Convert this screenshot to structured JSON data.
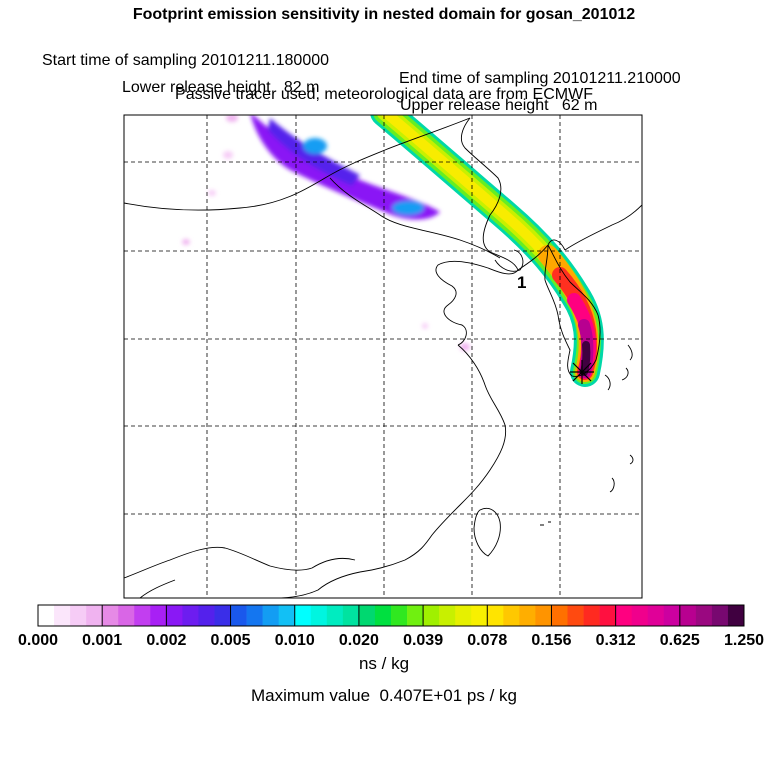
{
  "titles": {
    "line1": "Footprint emission sensitivity in nested domain for gosan_201012",
    "start": "Start time of sampling 20101211.180000",
    "end": "End time of sampling 20101211.210000",
    "lower": "Lower release height   82 m",
    "upper": "Upper release height   62 m",
    "line4": "Passive tracer used, meteorological data are from ECMWF"
  },
  "map": {
    "receptor_label": "1"
  },
  "colorbar": {
    "tick_labels": [
      "0.000",
      "0.001",
      "0.002",
      "0.005",
      "0.010",
      "0.020",
      "0.039",
      "0.078",
      "0.156",
      "0.312",
      "0.625",
      "1.250"
    ],
    "colors": [
      [
        "#ffffff",
        "#fbe6fb",
        "#f6ccf6",
        "#f0b3f0"
      ],
      [
        "#e68ae6",
        "#d966e6",
        "#c23ef0",
        "#a820f5"
      ],
      [
        "#8a18f5",
        "#6d1df0",
        "#5421ec",
        "#3a2ee8"
      ],
      [
        "#1a58ec",
        "#1476f0",
        "#139df3",
        "#12c0f5"
      ],
      [
        "#00ffff",
        "#00f5e0",
        "#00ecc0",
        "#00e3a0"
      ],
      [
        "#00d870",
        "#00e040",
        "#30e820",
        "#70f010"
      ],
      [
        "#a0f000",
        "#c8f000",
        "#e6f000",
        "#f8f000"
      ],
      [
        "#ffe400",
        "#ffc800",
        "#ffae00",
        "#ff9400"
      ],
      [
        "#ff7000",
        "#ff4a10",
        "#ff2a20",
        "#ff1040"
      ],
      [
        "#ff0080",
        "#f0008c",
        "#e00098",
        "#cc00a0"
      ],
      [
        "#b80090",
        "#9a0880",
        "#780870",
        "#400040"
      ]
    ],
    "unit": "ns / kg",
    "max_value": "Maximum value  0.407E+01 ps / kg"
  }
}
